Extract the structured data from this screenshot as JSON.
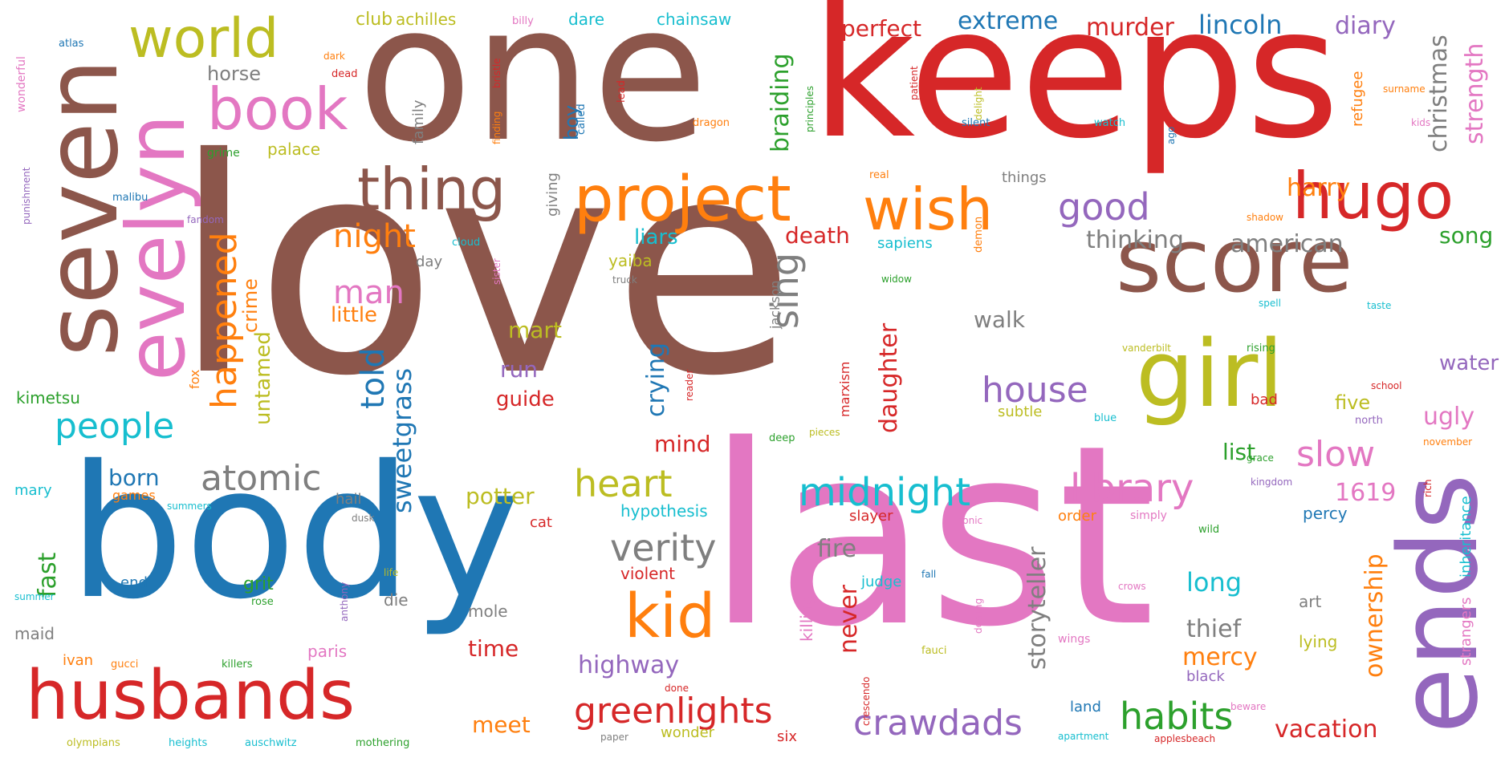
{
  "words": [
    {
      "text": "love",
      "color": "#8c564b"
    },
    {
      "text": "keeps",
      "color": "#d62728"
    },
    {
      "text": "one",
      "color": "#8c564b"
    },
    {
      "text": "body",
      "color": "#1f77b4"
    },
    {
      "text": "last",
      "color": "#e377c2"
    },
    {
      "text": "seven",
      "color": "#8c564b"
    },
    {
      "text": "evelyn",
      "color": "#e377c2"
    },
    {
      "text": "ends",
      "color": "#9467bd"
    },
    {
      "text": "score",
      "color": "#8c564b"
    },
    {
      "text": "girl",
      "color": "#bcbd22"
    },
    {
      "text": "husbands",
      "color": "#d62728"
    },
    {
      "text": "hugo",
      "color": "#d62728"
    },
    {
      "text": "project",
      "color": "#ff7f0e"
    },
    {
      "text": "wish",
      "color": "#ff7f0e"
    },
    {
      "text": "thing",
      "color": "#8c564b"
    },
    {
      "text": "world",
      "color": "#bcbd22"
    },
    {
      "text": "book",
      "color": "#e377c2"
    },
    {
      "text": "kid",
      "color": "#ff7f0e"
    },
    {
      "text": "verity",
      "color": "#7f7f7f"
    },
    {
      "text": "heart",
      "color": "#bcbd22"
    },
    {
      "text": "midnight",
      "color": "#17becf"
    },
    {
      "text": "library",
      "color": "#e377c2"
    },
    {
      "text": "atomic",
      "color": "#7f7f7f"
    },
    {
      "text": "people",
      "color": "#17becf"
    },
    {
      "text": "greenlights",
      "color": "#d62728"
    },
    {
      "text": "crawdads",
      "color": "#9467bd"
    },
    {
      "text": "habits",
      "color": "#2ca02c"
    },
    {
      "text": "house",
      "color": "#9467bd"
    },
    {
      "text": "slow",
      "color": "#e377c2"
    },
    {
      "text": "good",
      "color": "#9467bd"
    },
    {
      "text": "happened",
      "color": "#ff7f0e"
    },
    {
      "text": "night",
      "color": "#ff7f0e"
    },
    {
      "text": "man",
      "color": "#e377c2"
    },
    {
      "text": "told",
      "color": "#1f77b4"
    },
    {
      "text": "sweetgrass",
      "color": "#1f77b4"
    },
    {
      "text": "sing",
      "color": "#7f7f7f"
    },
    {
      "text": "extreme",
      "color": "#1f77b4"
    },
    {
      "text": "murder",
      "color": "#d62728"
    },
    {
      "text": "lincoln",
      "color": "#1f77b4"
    },
    {
      "text": "diary",
      "color": "#9467bd"
    },
    {
      "text": "perfect",
      "color": "#d62728"
    },
    {
      "text": "christmas",
      "color": "#7f7f7f"
    },
    {
      "text": "strength",
      "color": "#e377c2"
    },
    {
      "text": "braiding",
      "color": "#2ca02c"
    },
    {
      "text": "american",
      "color": "#7f7f7f"
    },
    {
      "text": "thinking",
      "color": "#7f7f7f"
    },
    {
      "text": "harry",
      "color": "#ff7f0e"
    },
    {
      "text": "song",
      "color": "#2ca02c"
    },
    {
      "text": "water",
      "color": "#9467bd"
    },
    {
      "text": "ugly",
      "color": "#e377c2"
    },
    {
      "text": "five",
      "color": "#bcbd22"
    },
    {
      "text": "list",
      "color": "#2ca02c"
    },
    {
      "text": "1619",
      "color": "#e377c2"
    },
    {
      "text": "long",
      "color": "#17becf"
    },
    {
      "text": "thief",
      "color": "#7f7f7f"
    },
    {
      "text": "mercy",
      "color": "#ff7f0e"
    },
    {
      "text": "vacation",
      "color": "#d62728"
    },
    {
      "text": "ownership",
      "color": "#ff7f0e"
    },
    {
      "text": "storyteller",
      "color": "#7f7f7f"
    },
    {
      "text": "daughter",
      "color": "#d62728"
    },
    {
      "text": "never",
      "color": "#d62728"
    },
    {
      "text": "fire",
      "color": "#7f7f7f"
    },
    {
      "text": "crying",
      "color": "#1f77b4"
    },
    {
      "text": "death",
      "color": "#d62728"
    },
    {
      "text": "walk",
      "color": "#7f7f7f"
    },
    {
      "text": "mind",
      "color": "#d62728"
    },
    {
      "text": "potter",
      "color": "#bcbd22"
    },
    {
      "text": "highway",
      "color": "#9467bd"
    },
    {
      "text": "time",
      "color": "#d62728"
    },
    {
      "text": "meet",
      "color": "#ff7f0e"
    },
    {
      "text": "born",
      "color": "#1f77b4"
    },
    {
      "text": "fast",
      "color": "#2ca02c"
    },
    {
      "text": "untamed",
      "color": "#bcbd22"
    },
    {
      "text": "crime",
      "color": "#ff7f0e"
    },
    {
      "text": "little",
      "color": "#ff7f0e"
    },
    {
      "text": "mart",
      "color": "#bcbd22"
    },
    {
      "text": "run",
      "color": "#9467bd"
    },
    {
      "text": "guide",
      "color": "#d62728"
    },
    {
      "text": "liars",
      "color": "#17becf"
    },
    {
      "text": "boy",
      "color": "#1f77b4"
    },
    {
      "text": "horse",
      "color": "#7f7f7f"
    },
    {
      "text": "club",
      "color": "#bcbd22"
    },
    {
      "text": "achilles",
      "color": "#bcbd22"
    },
    {
      "text": "dare",
      "color": "#17becf"
    },
    {
      "text": "chainsaw",
      "color": "#17becf"
    },
    {
      "text": "palace",
      "color": "#bcbd22"
    },
    {
      "text": "yaiba",
      "color": "#bcbd22"
    },
    {
      "text": "kimetsu",
      "color": "#2ca02c"
    },
    {
      "text": "grit",
      "color": "#2ca02c"
    },
    {
      "text": "die",
      "color": "#7f7f7f"
    },
    {
      "text": "mole",
      "color": "#7f7f7f"
    },
    {
      "text": "maid",
      "color": "#7f7f7f"
    },
    {
      "text": "ivan",
      "color": "#ff7f0e"
    },
    {
      "text": "paris",
      "color": "#e377c2"
    },
    {
      "text": "mary",
      "color": "#17becf"
    },
    {
      "text": "end",
      "color": "#1f77b4"
    },
    {
      "text": "hail",
      "color": "#7f7f7f"
    },
    {
      "text": "games",
      "color": "#ff7f0e"
    },
    {
      "text": "cat",
      "color": "#d62728"
    },
    {
      "text": "hypothesis",
      "color": "#17becf"
    },
    {
      "text": "violent",
      "color": "#d62728"
    },
    {
      "text": "judge",
      "color": "#17becf"
    },
    {
      "text": "killing",
      "color": "#e377c2"
    },
    {
      "text": "art",
      "color": "#7f7f7f"
    },
    {
      "text": "lying",
      "color": "#bcbd22"
    },
    {
      "text": "percy",
      "color": "#1f77b4"
    },
    {
      "text": "order",
      "color": "#ff7f0e"
    },
    {
      "text": "inheritance",
      "color": "#17becf"
    },
    {
      "text": "strangers",
      "color": "#e377c2"
    },
    {
      "text": "refugee",
      "color": "#ff7f0e"
    },
    {
      "text": "slayer",
      "color": "#d62728"
    },
    {
      "text": "wonder",
      "color": "#bcbd22"
    },
    {
      "text": "six",
      "color": "#d62728"
    },
    {
      "text": "land",
      "color": "#1f77b4"
    },
    {
      "text": "black",
      "color": "#9467bd"
    },
    {
      "text": "things",
      "color": "#7f7f7f"
    },
    {
      "text": "subtle",
      "color": "#bcbd22"
    },
    {
      "text": "marxism",
      "color": "#d62728"
    },
    {
      "text": "sapiens",
      "color": "#17becf"
    },
    {
      "text": "family",
      "color": "#7f7f7f"
    },
    {
      "text": "giving",
      "color": "#7f7f7f"
    },
    {
      "text": "day",
      "color": "#7f7f7f"
    },
    {
      "text": "jackson",
      "color": "#7f7f7f"
    },
    {
      "text": "fox",
      "color": "#ff7f0e"
    },
    {
      "text": "dark",
      "color": "#ff7f0e"
    },
    {
      "text": "dead",
      "color": "#d62728"
    },
    {
      "text": "atlas",
      "color": "#1f77b4"
    },
    {
      "text": "billy",
      "color": "#e377c2"
    },
    {
      "text": "wonderful",
      "color": "#e377c2"
    },
    {
      "text": "grime",
      "color": "#2ca02c"
    },
    {
      "text": "malibu",
      "color": "#1f77b4"
    },
    {
      "text": "punishment",
      "color": "#9467bd"
    },
    {
      "text": "dragon",
      "color": "#ff7f0e"
    },
    {
      "text": "patient",
      "color": "#d62728"
    },
    {
      "text": "silent",
      "color": "#1f77b4"
    },
    {
      "text": "watch",
      "color": "#17becf"
    },
    {
      "text": "kids",
      "color": "#e377c2"
    },
    {
      "text": "lead",
      "color": "#d62728"
    },
    {
      "text": "called",
      "color": "#1f77b4"
    },
    {
      "text": "rising",
      "color": "#2ca02c"
    },
    {
      "text": "school",
      "color": "#d62728"
    },
    {
      "text": "bad",
      "color": "#d62728"
    },
    {
      "text": "north",
      "color": "#9467bd"
    },
    {
      "text": "blue",
      "color": "#17becf"
    },
    {
      "text": "real",
      "color": "#ff7f0e"
    },
    {
      "text": "deep",
      "color": "#2ca02c"
    },
    {
      "text": "pieces",
      "color": "#bcbd22"
    },
    {
      "text": "cloud",
      "color": "#17becf"
    },
    {
      "text": "demon",
      "color": "#ff7f0e"
    },
    {
      "text": "kingdom",
      "color": "#9467bd"
    },
    {
      "text": "simply",
      "color": "#e377c2"
    },
    {
      "text": "wild",
      "color": "#2ca02c"
    },
    {
      "text": "gucci",
      "color": "#ff7f0e"
    },
    {
      "text": "killers",
      "color": "#2ca02c"
    },
    {
      "text": "olympians",
      "color": "#bcbd22"
    },
    {
      "text": "heights",
      "color": "#17becf"
    },
    {
      "text": "auschwitz",
      "color": "#17becf"
    },
    {
      "text": "mothering",
      "color": "#2ca02c"
    },
    {
      "text": "paper",
      "color": "#7f7f7f"
    },
    {
      "text": "apartment",
      "color": "#17becf"
    },
    {
      "text": "applesbeach",
      "color": "#d62728"
    },
    {
      "text": "wings",
      "color": "#e377c2"
    },
    {
      "text": "fauci",
      "color": "#bcbd22"
    },
    {
      "text": "rose",
      "color": "#2ca02c"
    },
    {
      "text": "summer",
      "color": "#17becf"
    },
    {
      "text": "vanderbilt",
      "color": "#bcbd22"
    },
    {
      "text": "sonic",
      "color": "#e377c2"
    },
    {
      "text": "fall",
      "color": "#1f77b4"
    },
    {
      "text": "crows",
      "color": "#e377c2"
    },
    {
      "text": "done",
      "color": "#d62728"
    },
    {
      "text": "taste",
      "color": "#17becf"
    },
    {
      "text": "shadow",
      "color": "#ff7f0e"
    },
    {
      "text": "november",
      "color": "#ff7f0e"
    },
    {
      "text": "anthony",
      "color": "#9467bd"
    },
    {
      "text": "summers",
      "color": "#17becf"
    },
    {
      "text": "sister",
      "color": "#e377c2"
    },
    {
      "text": "life",
      "color": "#bcbd22"
    },
    {
      "text": "truck",
      "color": "#7f7f7f"
    },
    {
      "text": "widow",
      "color": "#2ca02c"
    },
    {
      "text": "spell",
      "color": "#17becf"
    },
    {
      "text": "delight",
      "color": "#bcbd22"
    },
    {
      "text": "principles",
      "color": "#2ca02c"
    },
    {
      "text": "bristle",
      "color": "#d62728"
    },
    {
      "text": "dealing",
      "color": "#e377c2"
    },
    {
      "text": "surname",
      "color": "#ff7f0e"
    },
    {
      "text": "crescendo",
      "color": "#d62728"
    },
    {
      "text": "reader",
      "color": "#d62728"
    },
    {
      "text": "beware",
      "color": "#e377c2"
    },
    {
      "text": "rich",
      "color": "#d62728"
    },
    {
      "text": "fandom",
      "color": "#9467bd"
    },
    {
      "text": "finding",
      "color": "#ff7f0e"
    },
    {
      "text": "grace",
      "color": "#2ca02c"
    },
    {
      "text": "ago",
      "color": "#1f77b4"
    },
    {
      "text": "dusk",
      "color": "#7f7f7f"
    }
  ]
}
